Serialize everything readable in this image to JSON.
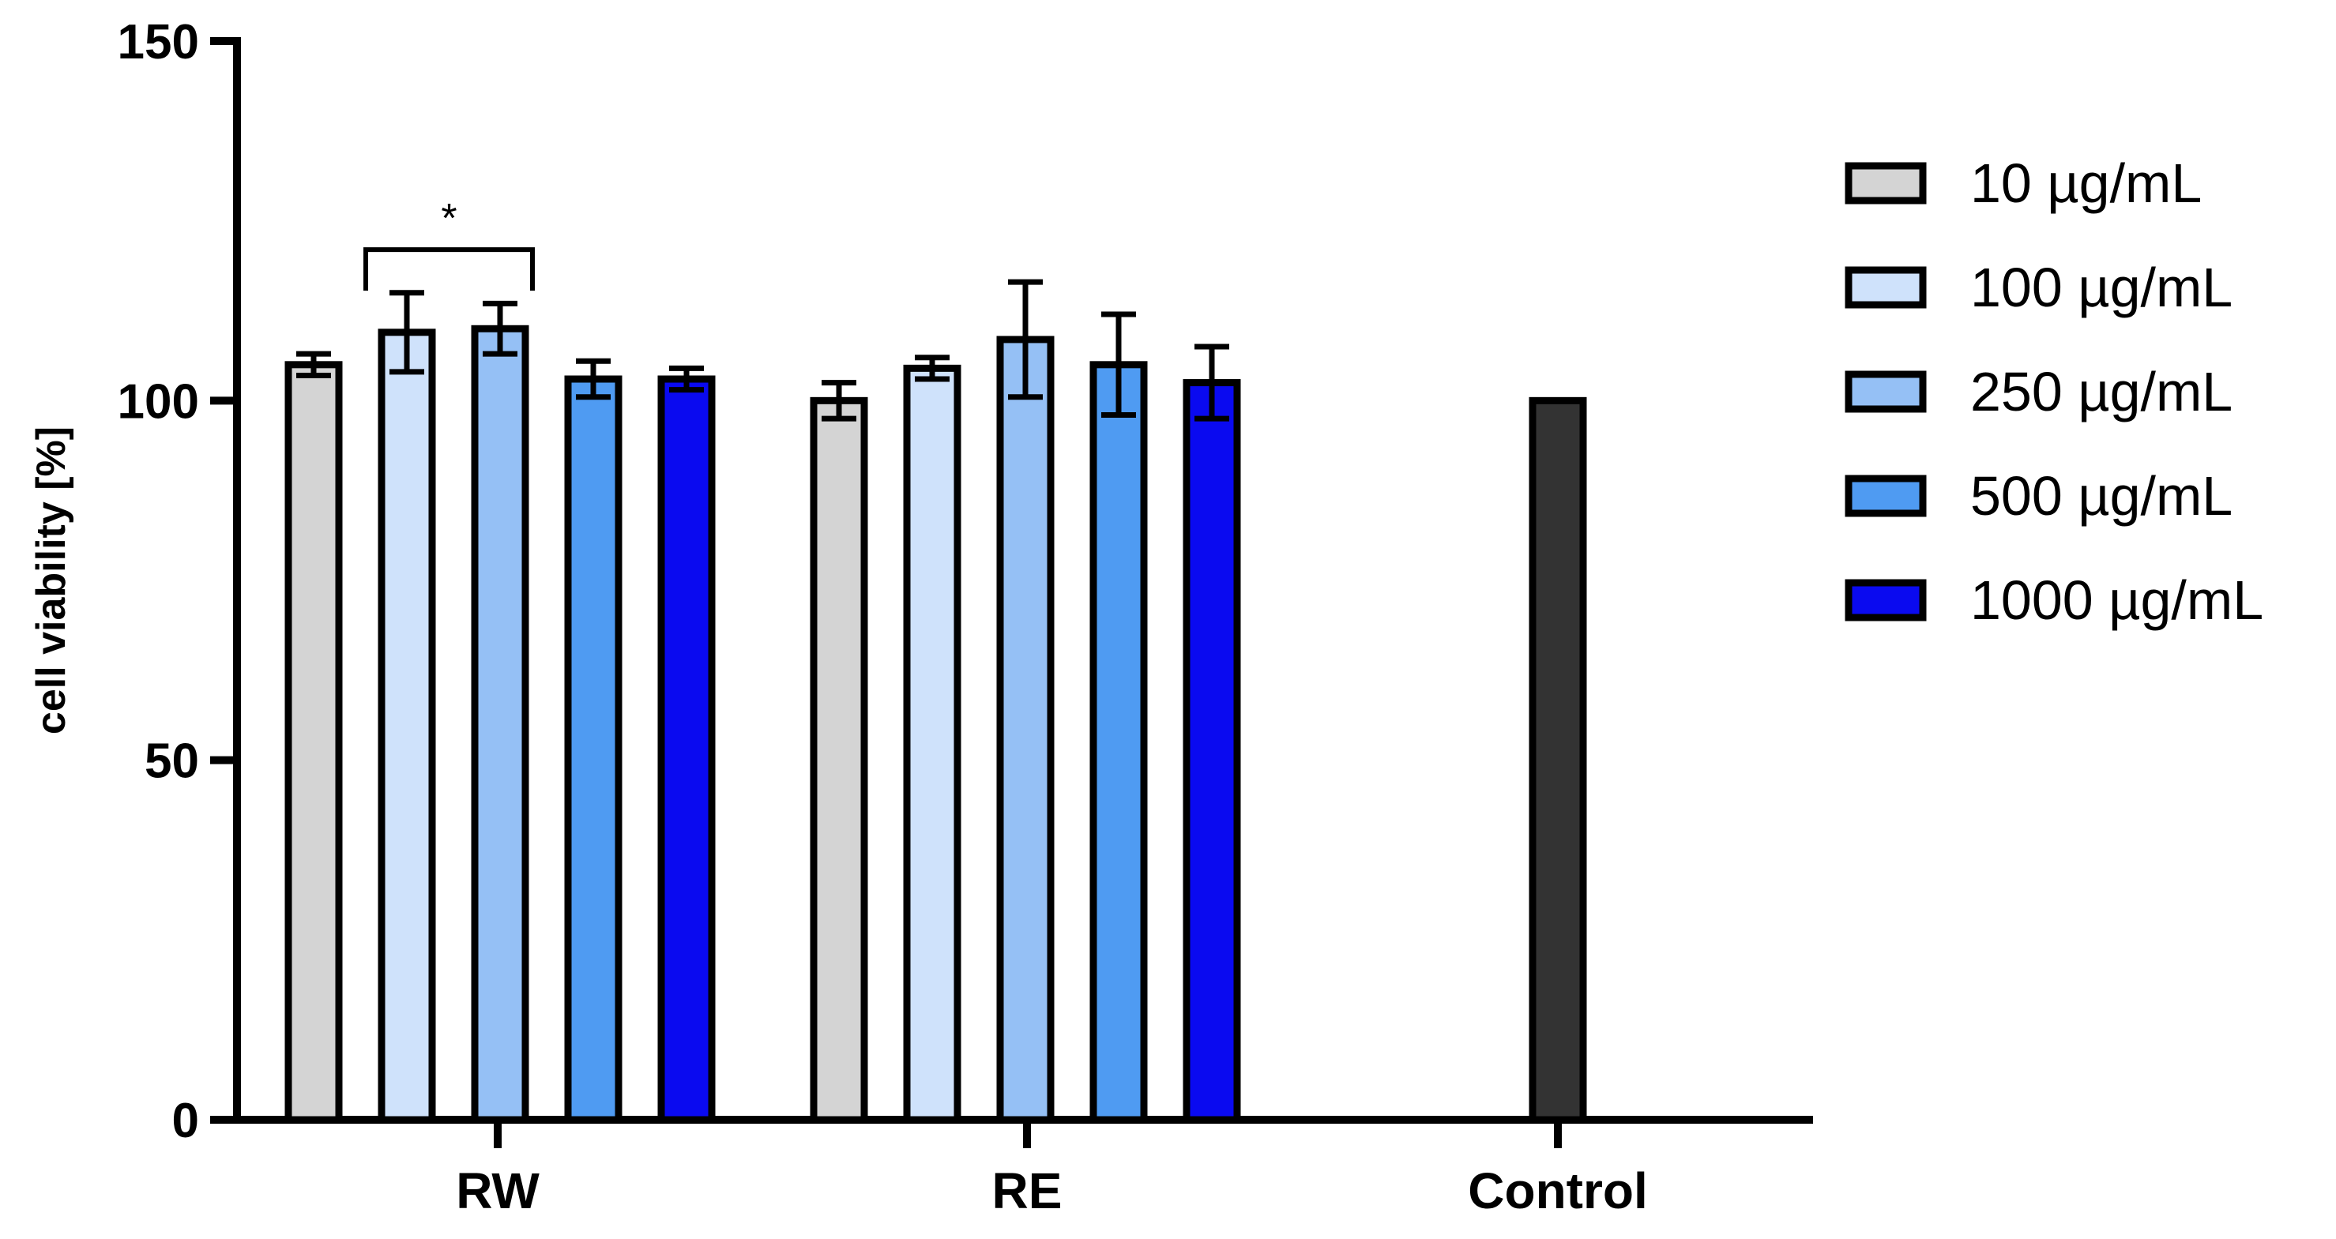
{
  "chart_data": {
    "type": "bar",
    "ylabel": "cell viability [%]",
    "xlabel": "",
    "ylim": [
      0,
      150
    ],
    "yticks": [
      0,
      50,
      100,
      150
    ],
    "categories": [
      "RW",
      "RE",
      "Control"
    ],
    "series": [
      {
        "name": "10 µg/mL",
        "color": "#d4d4d4",
        "values": [
          105,
          100,
          null
        ],
        "errors": [
          1.5,
          2.5,
          null
        ]
      },
      {
        "name": "100 µg/mL",
        "color": "#cfe2fb",
        "values": [
          109.5,
          104.5,
          null
        ],
        "errors": [
          5.5,
          1.5,
          null
        ]
      },
      {
        "name": "250 µg/mL",
        "color": "#95c0f5",
        "values": [
          110,
          108.5,
          null
        ],
        "errors": [
          3.5,
          8,
          null
        ]
      },
      {
        "name": "500 µg/mL",
        "color": "#4f9bf2",
        "values": [
          103,
          105,
          null
        ],
        "errors": [
          2.5,
          7,
          null
        ]
      },
      {
        "name": "1000 µg/mL",
        "color": "#0a0af0",
        "values": [
          103,
          102.5,
          null
        ],
        "errors": [
          1.5,
          5,
          null
        ]
      }
    ],
    "control": {
      "category": "Control",
      "value": 100,
      "color": "#333333"
    },
    "annotations": [
      {
        "text": "*",
        "category": "RW",
        "from_series": 1,
        "to_series": 3,
        "y": 121
      }
    ],
    "grid": false,
    "legend_position": "right"
  }
}
